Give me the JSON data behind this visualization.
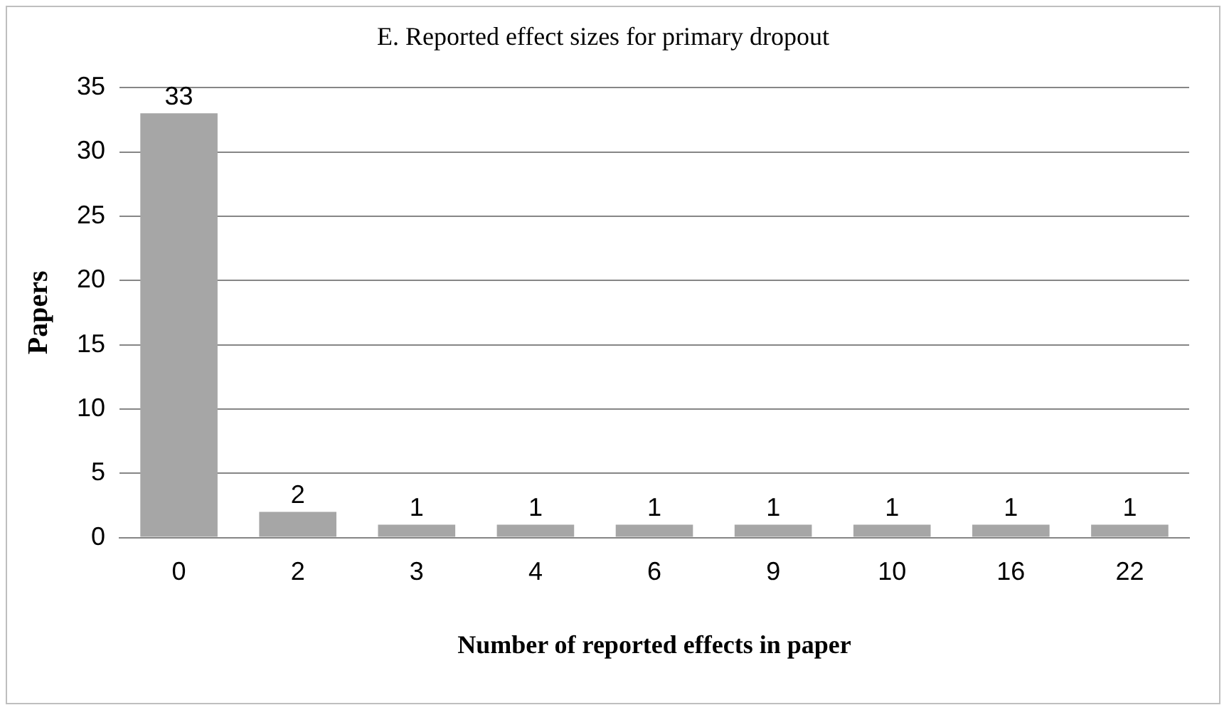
{
  "chart_data": {
    "type": "bar",
    "title": "E. Reported effect sizes for primary dropout",
    "xlabel": "Number of reported effects in paper",
    "ylabel": "Papers",
    "categories": [
      "0",
      "2",
      "3",
      "4",
      "6",
      "9",
      "10",
      "16",
      "22"
    ],
    "values": [
      33,
      2,
      1,
      1,
      1,
      1,
      1,
      1,
      1
    ],
    "color": "#a6a6a6",
    "ylim": [
      0,
      35
    ],
    "yticks": [
      0,
      5,
      10,
      15,
      20,
      25,
      30,
      35
    ],
    "grid": "y",
    "data_labels": true,
    "legend": false
  }
}
